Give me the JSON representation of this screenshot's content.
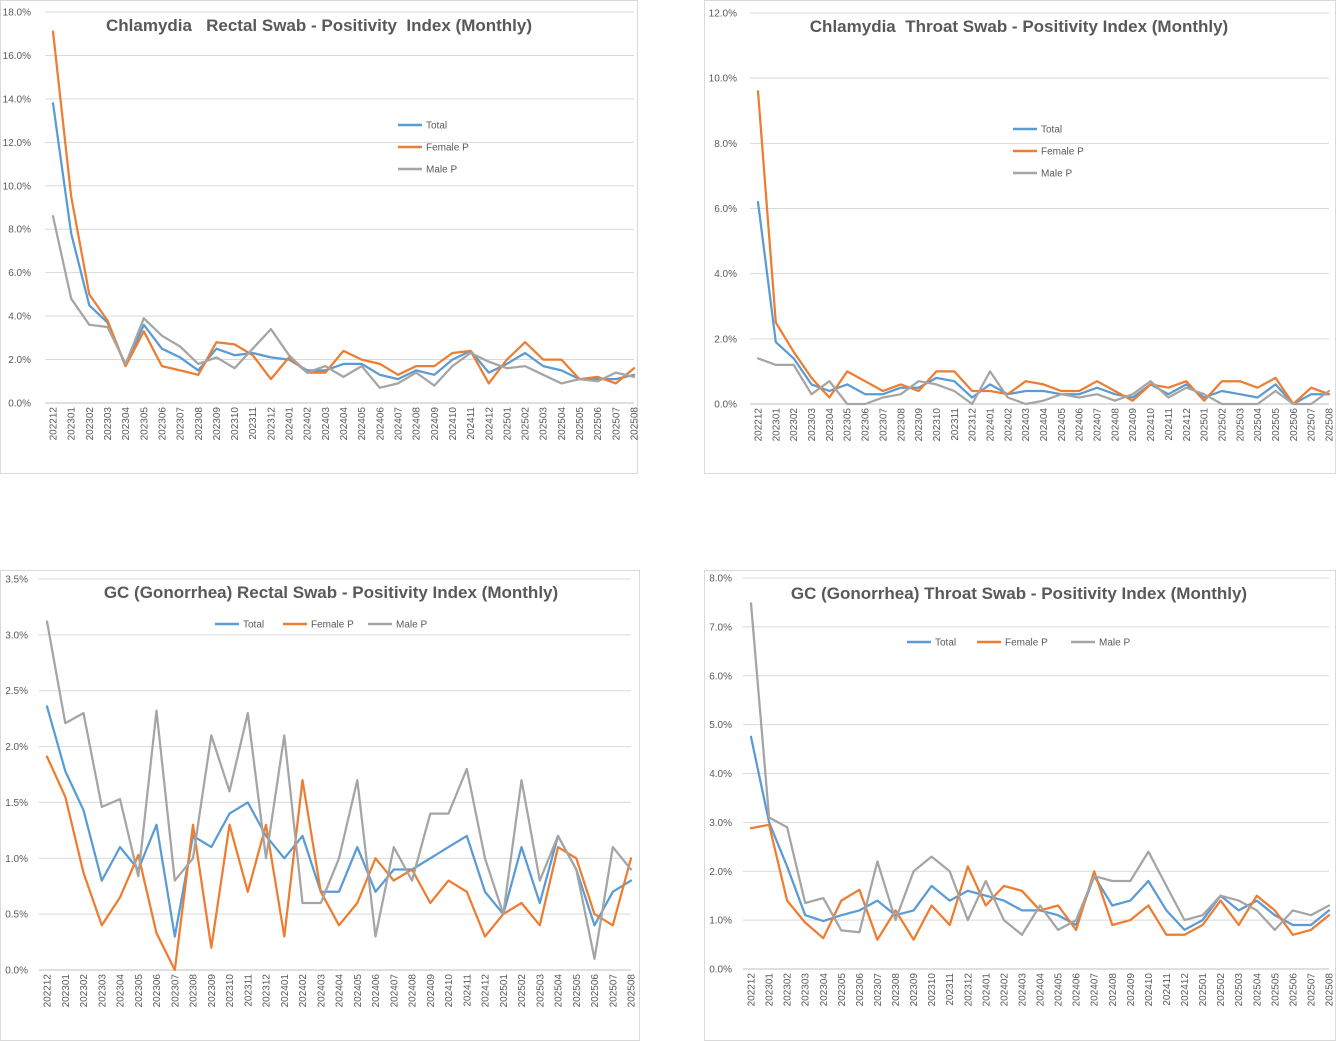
{
  "chart_data": [
    {
      "type": "line",
      "title": "Chlamydia   Rectal Swab - Positivity  Index (Monthly)",
      "xlabel": "",
      "ylabel": "",
      "ylim": [
        0,
        18
      ],
      "y_ticks": [
        "0.0%",
        "2.0%",
        "4.0%",
        "6.0%",
        "8.0%",
        "10.0%",
        "12.0%",
        "14.0%",
        "16.0%",
        "18.0%"
      ],
      "legend_position": "right-middle",
      "grid": true,
      "categories": [
        "202212",
        "202301",
        "202302",
        "202303",
        "202304",
        "202305",
        "202306",
        "202307",
        "202308",
        "202309",
        "202310",
        "202311",
        "202312",
        "202401",
        "202402",
        "202403",
        "202404",
        "202405",
        "202406",
        "202407",
        "202408",
        "202409",
        "202410",
        "202411",
        "202412",
        "202501",
        "202502",
        "202503",
        "202504",
        "202505",
        "202506",
        "202507",
        "202508"
      ],
      "series": [
        {
          "name": "Total",
          "color": "#5b9bd5",
          "values": [
            13.8,
            7.8,
            4.5,
            3.7,
            1.7,
            3.6,
            2.5,
            2.1,
            1.5,
            2.5,
            2.2,
            2.3,
            2.1,
            2.0,
            1.5,
            1.5,
            1.8,
            1.8,
            1.3,
            1.1,
            1.5,
            1.3,
            2.0,
            2.4,
            1.4,
            1.8,
            2.3,
            1.7,
            1.5,
            1.1,
            1.1,
            1.1,
            1.3
          ]
        },
        {
          "name": "Female P",
          "color": "#ed7d31",
          "values": [
            17.1,
            9.5,
            5.0,
            3.8,
            1.7,
            3.3,
            1.7,
            1.5,
            1.3,
            2.8,
            2.7,
            2.2,
            1.1,
            2.1,
            1.4,
            1.4,
            2.4,
            2.0,
            1.8,
            1.3,
            1.7,
            1.7,
            2.3,
            2.4,
            0.9,
            2.0,
            2.8,
            2.0,
            2.0,
            1.1,
            1.2,
            0.9,
            1.6
          ]
        },
        {
          "name": "Male P",
          "color": "#a5a5a5",
          "values": [
            8.6,
            4.8,
            3.6,
            3.5,
            1.8,
            3.9,
            3.1,
            2.6,
            1.8,
            2.1,
            1.6,
            2.5,
            3.4,
            2.2,
            1.4,
            1.7,
            1.2,
            1.7,
            0.7,
            0.9,
            1.4,
            0.8,
            1.7,
            2.3,
            1.9,
            1.6,
            1.7,
            1.3,
            0.9,
            1.1,
            1.0,
            1.4,
            1.2
          ]
        }
      ]
    },
    {
      "type": "line",
      "title": "Chlamydia  Throat Swab - Positivity Index (Monthly)",
      "xlabel": "",
      "ylabel": "",
      "ylim": [
        0,
        12
      ],
      "y_ticks": [
        "0.0%",
        "2.0%",
        "4.0%",
        "6.0%",
        "8.0%",
        "10.0%",
        "12.0%"
      ],
      "legend_position": "right-middle",
      "grid": true,
      "categories": [
        "202212",
        "202301",
        "202302",
        "202303",
        "202304",
        "202305",
        "202306",
        "202307",
        "202308",
        "202309",
        "202310",
        "202311",
        "202312",
        "202401",
        "202402",
        "202403",
        "202404",
        "202405",
        "202406",
        "202407",
        "202408",
        "202409",
        "202410",
        "202411",
        "202412",
        "202501",
        "202502",
        "202503",
        "202504",
        "202505",
        "202506",
        "202507",
        "202508"
      ],
      "series": [
        {
          "name": "Total",
          "color": "#5b9bd5",
          "values": [
            6.2,
            1.9,
            1.4,
            0.6,
            0.4,
            0.6,
            0.3,
            0.3,
            0.5,
            0.5,
            0.8,
            0.7,
            0.2,
            0.6,
            0.3,
            0.4,
            0.4,
            0.3,
            0.3,
            0.5,
            0.3,
            0.2,
            0.6,
            0.3,
            0.6,
            0.2,
            0.4,
            0.3,
            0.2,
            0.6,
            0.0,
            0.3,
            0.3
          ]
        },
        {
          "name": "Female P",
          "color": "#ed7d31",
          "values": [
            9.6,
            2.5,
            1.6,
            0.8,
            0.2,
            1.0,
            0.7,
            0.4,
            0.6,
            0.4,
            1.0,
            1.0,
            0.4,
            0.4,
            0.3,
            0.7,
            0.6,
            0.4,
            0.4,
            0.7,
            0.4,
            0.1,
            0.6,
            0.5,
            0.7,
            0.1,
            0.7,
            0.7,
            0.5,
            0.8,
            0.0,
            0.5,
            0.3
          ]
        },
        {
          "name": "Male P",
          "color": "#a5a5a5",
          "values": [
            1.4,
            1.2,
            1.2,
            0.3,
            0.7,
            0.0,
            0.0,
            0.2,
            0.3,
            0.7,
            0.6,
            0.4,
            0.0,
            1.0,
            0.2,
            0.0,
            0.1,
            0.3,
            0.2,
            0.3,
            0.1,
            0.3,
            0.7,
            0.2,
            0.5,
            0.3,
            0.0,
            0.0,
            0.0,
            0.4,
            0.0,
            0.0,
            0.4
          ]
        }
      ]
    },
    {
      "type": "line",
      "title": "GC (Gonorrhea) Rectal Swab - Positivity Index (Monthly)",
      "xlabel": "",
      "ylabel": "",
      "ylim": [
        0,
        3.5
      ],
      "y_ticks": [
        "0.0%",
        "0.5%",
        "1.0%",
        "1.5%",
        "2.0%",
        "2.5%",
        "3.0%",
        "3.5%"
      ],
      "legend_position": "top",
      "grid": true,
      "categories": [
        "202212",
        "202301",
        "202302",
        "202303",
        "202304",
        "202305",
        "202306",
        "202307",
        "202308",
        "202309",
        "202310",
        "202311",
        "202312",
        "202401",
        "202402",
        "202403",
        "202404",
        "202405",
        "202406",
        "202407",
        "202408",
        "202409",
        "202410",
        "202411",
        "202412",
        "202501",
        "202502",
        "202503",
        "202504",
        "202505",
        "202506",
        "202507",
        "202508"
      ],
      "series": [
        {
          "name": "Total",
          "color": "#5b9bd5",
          "values": [
            2.36,
            1.78,
            1.43,
            0.8,
            1.1,
            0.9,
            1.3,
            0.3,
            1.2,
            1.1,
            1.4,
            1.5,
            1.2,
            1.0,
            1.2,
            0.7,
            0.7,
            1.1,
            0.7,
            0.9,
            0.9,
            1.0,
            1.1,
            1.2,
            0.7,
            0.5,
            1.1,
            0.6,
            1.2,
            0.9,
            0.4,
            0.7,
            0.8
          ]
        },
        {
          "name": "Female P",
          "color": "#ed7d31",
          "values": [
            1.91,
            1.55,
            0.87,
            0.4,
            0.65,
            1.03,
            0.33,
            0.0,
            1.3,
            0.2,
            1.3,
            0.7,
            1.3,
            0.3,
            1.7,
            0.7,
            0.4,
            0.6,
            1.0,
            0.8,
            0.9,
            0.6,
            0.8,
            0.7,
            0.3,
            0.5,
            0.6,
            0.4,
            1.1,
            1.0,
            0.5,
            0.4,
            1.0
          ]
        },
        {
          "name": "Male P",
          "color": "#a5a5a5",
          "values": [
            3.12,
            2.21,
            2.3,
            1.46,
            1.53,
            0.84,
            2.32,
            0.8,
            1.0,
            2.1,
            1.6,
            2.3,
            1.0,
            2.1,
            0.6,
            0.6,
            1.0,
            1.7,
            0.3,
            1.1,
            0.8,
            1.4,
            1.4,
            1.8,
            1.0,
            0.5,
            1.7,
            0.8,
            1.2,
            0.9,
            0.1,
            1.1,
            0.9
          ]
        }
      ]
    },
    {
      "type": "line",
      "title": "GC (Gonorrhea) Throat Swab - Positivity Index (Monthly)",
      "xlabel": "",
      "ylabel": "",
      "ylim": [
        0,
        8
      ],
      "y_ticks": [
        "0.0%",
        "1.0%",
        "2.0%",
        "3.0%",
        "4.0%",
        "5.0%",
        "6.0%",
        "7.0%",
        "8.0%"
      ],
      "legend_position": "top",
      "grid": true,
      "categories": [
        "202212",
        "202301",
        "202302",
        "202303",
        "202304",
        "202305",
        "202306",
        "202307",
        "202308",
        "202309",
        "202310",
        "202311",
        "202312",
        "202401",
        "202402",
        "202403",
        "202404",
        "202405",
        "202406",
        "202407",
        "202408",
        "202409",
        "202410",
        "202411",
        "202412",
        "202501",
        "202502",
        "202503",
        "202504",
        "202505",
        "202506",
        "202507",
        "202508"
      ],
      "series": [
        {
          "name": "Total",
          "color": "#5b9bd5",
          "values": [
            4.75,
            3.0,
            2.1,
            1.1,
            0.98,
            1.1,
            1.2,
            1.4,
            1.1,
            1.2,
            1.7,
            1.4,
            1.6,
            1.5,
            1.4,
            1.2,
            1.2,
            1.1,
            0.9,
            1.9,
            1.3,
            1.4,
            1.8,
            1.2,
            0.8,
            1.0,
            1.5,
            1.2,
            1.4,
            1.1,
            0.9,
            0.9,
            1.2
          ]
        },
        {
          "name": "Female P",
          "color": "#ed7d31",
          "values": [
            2.88,
            2.95,
            1.4,
            0.95,
            0.63,
            1.4,
            1.62,
            0.6,
            1.2,
            0.6,
            1.3,
            0.9,
            2.1,
            1.3,
            1.7,
            1.6,
            1.2,
            1.3,
            0.8,
            2.0,
            0.9,
            1.0,
            1.3,
            0.7,
            0.7,
            0.9,
            1.4,
            0.9,
            1.5,
            1.2,
            0.7,
            0.8,
            1.1
          ]
        },
        {
          "name": "Male P",
          "color": "#a5a5a5",
          "values": [
            7.48,
            3.1,
            2.9,
            1.35,
            1.45,
            0.79,
            0.75,
            2.2,
            1.0,
            2.0,
            2.3,
            2.0,
            1.0,
            1.8,
            1.0,
            0.7,
            1.3,
            0.8,
            1.0,
            1.9,
            1.8,
            1.8,
            2.4,
            1.7,
            1.0,
            1.1,
            1.5,
            1.4,
            1.2,
            0.8,
            1.2,
            1.1,
            1.3
          ]
        }
      ]
    }
  ]
}
